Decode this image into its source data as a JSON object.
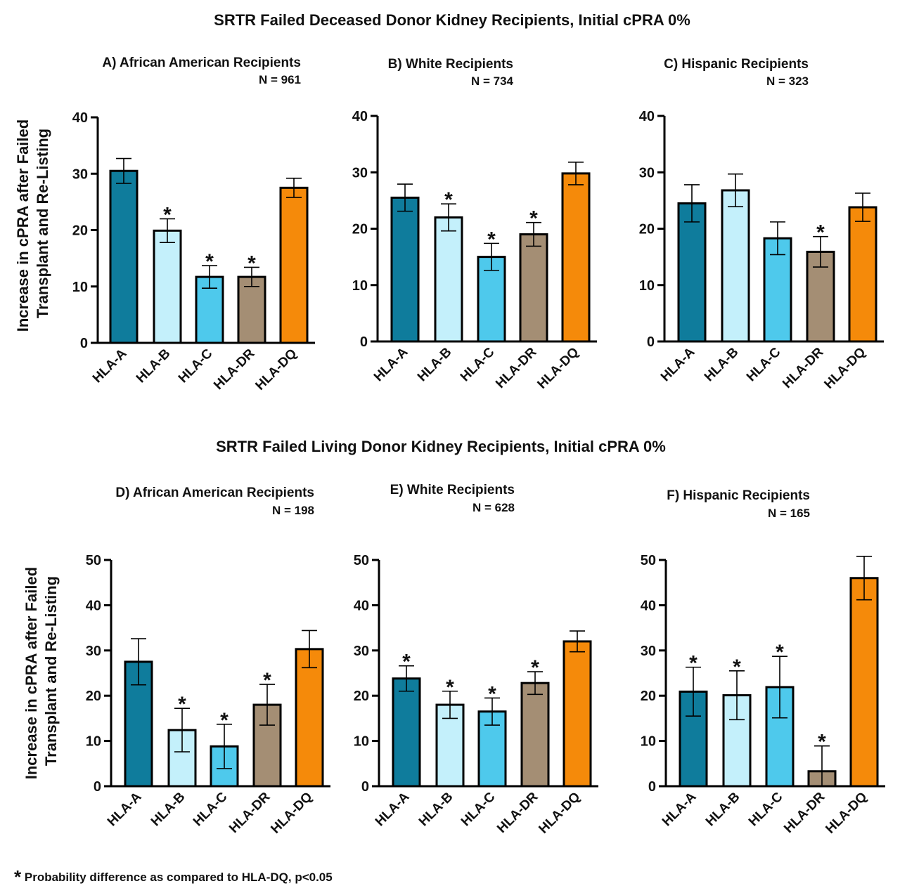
{
  "section_titles": [
    "SRTR Failed Deceased Donor Kidney Recipients, Initial cPRA 0%",
    "SRTR Failed Living Donor Kidney Recipients, Initial cPRA 0%"
  ],
  "ylabel_lines": [
    "Increase in cPRA after Failed",
    "Transplant and Re-Listing"
  ],
  "footnote": {
    "symbol": "*",
    "text": "Probability difference as compared to HLA-DQ, p<0.05"
  },
  "bar_colors": [
    "#0f7c9c",
    "#c4f0fb",
    "#4ec9ec",
    "#a48e74",
    "#f58a0a"
  ],
  "chart_data": [
    {
      "type": "bar",
      "title": "A) African American Recipients",
      "subtitle": "N = 961",
      "categories": [
        "HLA-A",
        "HLA-B",
        "HLA-C",
        "HLA-DR",
        "HLA-DQ"
      ],
      "values": [
        30.5,
        19.9,
        11.7,
        11.7,
        27.5
      ],
      "errors": [
        2.2,
        2.1,
        2.0,
        1.7,
        1.7
      ],
      "significant": [
        false,
        true,
        true,
        true,
        false
      ],
      "ylim": [
        0,
        40
      ],
      "yticks": [
        0,
        10,
        20,
        30,
        40
      ]
    },
    {
      "type": "bar",
      "title": "B) White Recipients",
      "subtitle": "N = 734",
      "categories": [
        "HLA-A",
        "HLA-B",
        "HLA-C",
        "HLA-DR",
        "HLA-DQ"
      ],
      "values": [
        25.5,
        22.0,
        15.0,
        19.0,
        29.8
      ],
      "errors": [
        2.4,
        2.4,
        2.4,
        2.1,
        2.0
      ],
      "significant": [
        false,
        true,
        true,
        true,
        false
      ],
      "ylim": [
        0,
        40
      ],
      "yticks": [
        0,
        10,
        20,
        30,
        40
      ]
    },
    {
      "type": "bar",
      "title": "C) Hispanic Recipients",
      "subtitle": "N = 323",
      "categories": [
        "HLA-A",
        "HLA-B",
        "HLA-C",
        "HLA-DR",
        "HLA-DQ"
      ],
      "values": [
        24.5,
        26.8,
        18.3,
        15.9,
        23.8
      ],
      "errors": [
        3.3,
        2.9,
        2.9,
        2.7,
        2.5
      ],
      "significant": [
        false,
        false,
        false,
        true,
        false
      ],
      "ylim": [
        0,
        40
      ],
      "yticks": [
        0,
        10,
        20,
        30,
        40
      ]
    },
    {
      "type": "bar",
      "title": "D) African American Recipients",
      "subtitle": "N = 198",
      "categories": [
        "HLA-A",
        "HLA-B",
        "HLA-C",
        "HLA-DR",
        "HLA-DQ"
      ],
      "values": [
        27.5,
        12.4,
        8.8,
        18.0,
        30.3
      ],
      "errors": [
        5.1,
        4.8,
        4.9,
        4.5,
        4.1
      ],
      "significant": [
        false,
        true,
        true,
        true,
        false
      ],
      "ylim": [
        0,
        50
      ],
      "yticks": [
        0,
        10,
        20,
        30,
        40,
        50
      ]
    },
    {
      "type": "bar",
      "title": "E) White Recipients",
      "subtitle": "N = 628",
      "categories": [
        "HLA-A",
        "HLA-B",
        "HLA-C",
        "HLA-DR",
        "HLA-DQ"
      ],
      "values": [
        23.8,
        18.0,
        16.5,
        22.8,
        32.0
      ],
      "errors": [
        2.8,
        3.0,
        3.0,
        2.5,
        2.3
      ],
      "significant": [
        true,
        true,
        true,
        true,
        false
      ],
      "ylim": [
        0,
        50
      ],
      "yticks": [
        0,
        10,
        20,
        30,
        40,
        50
      ]
    },
    {
      "type": "bar",
      "title": "F) Hispanic Recipients",
      "subtitle": "N = 165",
      "categories": [
        "HLA-A",
        "HLA-B",
        "HLA-C",
        "HLA-DR",
        "HLA-DQ"
      ],
      "values": [
        20.9,
        20.1,
        21.9,
        3.3,
        46.0
      ],
      "errors": [
        5.4,
        5.4,
        6.8,
        5.6,
        4.8
      ],
      "significant": [
        true,
        true,
        true,
        true,
        false
      ],
      "ylim": [
        0,
        50
      ],
      "yticks": [
        0,
        10,
        20,
        30,
        40,
        50
      ]
    }
  ]
}
